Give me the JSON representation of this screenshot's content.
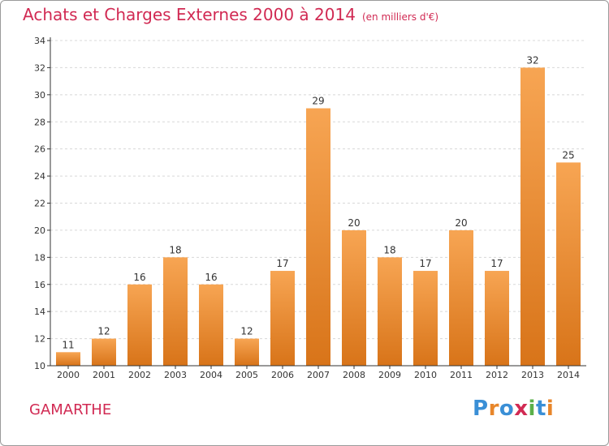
{
  "header": {
    "title": "Achats et Charges Externes 2000 à 2014",
    "subtitle": "(en milliers d'€)"
  },
  "footer": {
    "commune": "GAMARTHE",
    "logo_text": "Proxiti",
    "logo_letter_colors": [
      "#3a8fd6",
      "#e8862a",
      "#3a8fd6",
      "#d12a53",
      "#5bb04a",
      "#3a8fd6",
      "#e8862a"
    ]
  },
  "colors": {
    "bar_top": "#f7a553",
    "bar_bottom": "#d87419",
    "grid": "#d8d8d8",
    "axis": "#333333",
    "title": "#d12a53"
  },
  "chart_data": {
    "type": "bar",
    "categories": [
      "2000",
      "2001",
      "2002",
      "2003",
      "2004",
      "2005",
      "2006",
      "2007",
      "2008",
      "2009",
      "2010",
      "2011",
      "2012",
      "2013",
      "2014"
    ],
    "values": [
      11,
      12,
      16,
      18,
      16,
      12,
      17,
      29,
      20,
      18,
      17,
      20,
      17,
      32,
      25
    ],
    "data_labels": [
      "11",
      "12",
      "16",
      "18",
      "16",
      "12",
      "17",
      "29",
      "20",
      "18",
      "17",
      "20",
      "17",
      "32",
      "25"
    ],
    "yticks": [
      10,
      12,
      14,
      16,
      18,
      20,
      22,
      24,
      26,
      28,
      30,
      32,
      34
    ],
    "ylim": [
      10,
      34
    ],
    "grid": true,
    "legend": "none"
  }
}
